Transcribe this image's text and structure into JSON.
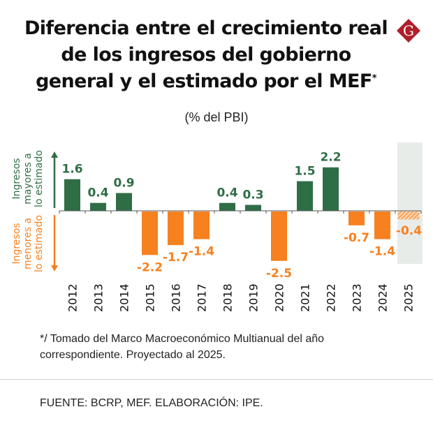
{
  "header": {
    "title": "Diferencia entre el crecimiento real de los ingresos del gobierno general y el estimado por el MEF",
    "title_marker": "*",
    "subtitle": "(% del PBI)",
    "logo_letter": "G",
    "logo_icon": "brand-diamond-g-icon"
  },
  "colors": {
    "positive": "#2f6e45",
    "negative": "#f7801f",
    "projection_bg": "#e8ece8",
    "logo": "#b01e2a"
  },
  "chart_data": {
    "type": "bar",
    "title": "Diferencia entre el crecimiento real de los ingresos del gobierno general y el estimado por el MEF*",
    "subtitle": "(% del PBI)",
    "xlabel": "",
    "ylabel": "",
    "categories": [
      "2012",
      "2013",
      "2014",
      "2015",
      "2016",
      "2017",
      "2018",
      "2019",
      "2020",
      "2021",
      "2022",
      "2023",
      "2024",
      "2025"
    ],
    "values": [
      1.6,
      0.4,
      0.9,
      -2.2,
      -1.7,
      -1.4,
      0.4,
      0.3,
      -2.5,
      1.5,
      2.2,
      -0.7,
      -1.4,
      -0.4
    ],
    "labels": [
      "1.6",
      "0.4",
      "0.9",
      "-2.2",
      "-1.7",
      "-1.4",
      "0.4",
      "0.3",
      "-2.5",
      "1.5",
      "2.2",
      "-0.7",
      "-1.4",
      "-0.4"
    ],
    "projected": [
      "2025"
    ],
    "ylim": [
      -2.6,
      3.4
    ],
    "grid": false,
    "legend": {
      "upper_label": "Ingresos mayores a lo estimado",
      "upper_lines": [
        "Ingresos",
        "mayores a",
        "lo estimado"
      ],
      "lower_label": "Ingresos menores a lo estimado",
      "lower_lines": [
        "Ingresos",
        "menores a",
        "lo estimado"
      ],
      "placement": "left"
    }
  },
  "footnote": {
    "line1": "*/ Tomado del Marco Macroeconómico Multianual del año",
    "line2": "correspondiente.  Proyectado al 2025."
  },
  "source": "FUENTE: BCRP, MEF. ELABORACIÓN: IPE."
}
